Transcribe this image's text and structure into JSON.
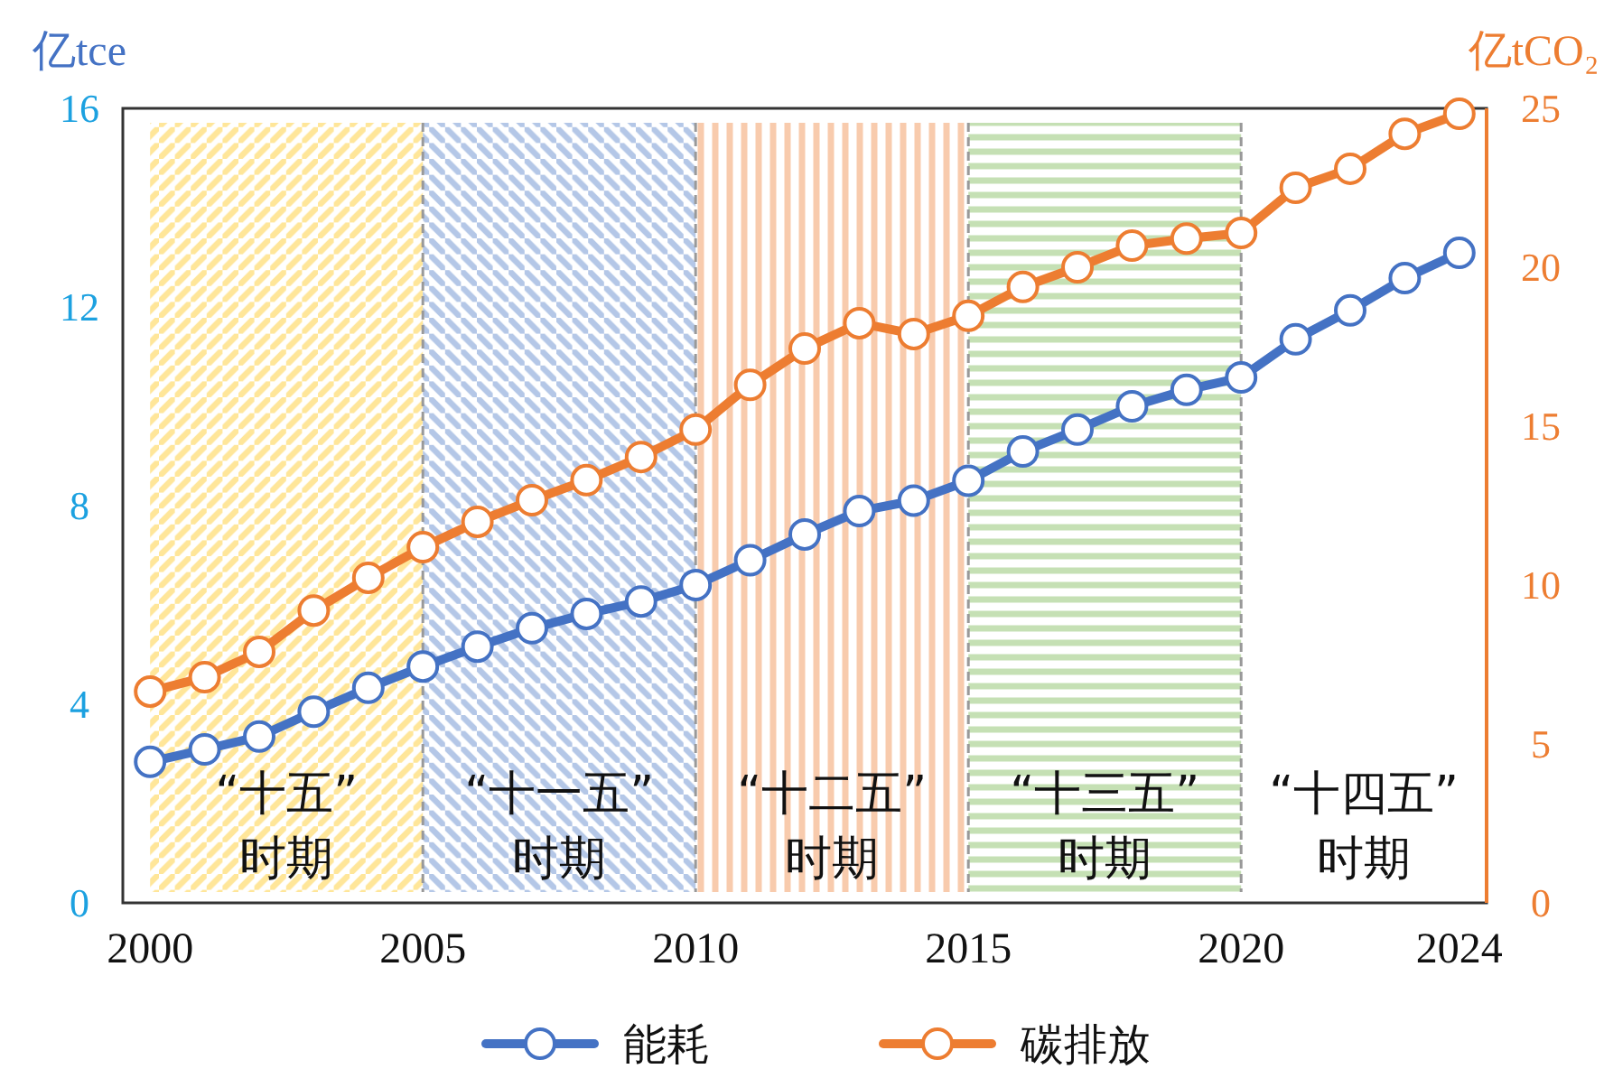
{
  "chart_data": {
    "type": "line",
    "ylabel": "亿tce",
    "y2label": "亿tCO₂",
    "x": [
      2000,
      2001,
      2002,
      2003,
      2004,
      2005,
      2006,
      2007,
      2008,
      2009,
      2010,
      2011,
      2012,
      2013,
      2014,
      2015,
      2016,
      2017,
      2018,
      2019,
      2020,
      2021,
      2022,
      2023,
      2024
    ],
    "xlim": [
      1999.5,
      2024.5
    ],
    "xticks": [
      2000,
      2005,
      2010,
      2015,
      2020,
      2024
    ],
    "ylim": [
      0,
      16
    ],
    "yticks": [
      0,
      4,
      8,
      12,
      16
    ],
    "y2lim": [
      0,
      25
    ],
    "y2ticks": [
      0,
      5,
      10,
      15,
      20,
      25
    ],
    "series": [
      {
        "name": "能耗",
        "color": "#4472c4",
        "values": [
          2.84,
          3.09,
          3.35,
          3.85,
          4.33,
          4.76,
          5.16,
          5.53,
          5.82,
          6.07,
          6.4,
          6.9,
          7.42,
          7.89,
          8.1,
          8.5,
          9.09,
          9.53,
          10.0,
          10.33,
          10.58,
          11.35,
          11.93,
          12.58,
          13.09
        ]
      },
      {
        "name": "碳排放",
        "color": "#ed7d31",
        "axis": "y2",
        "values": [
          6.65,
          7.1,
          7.9,
          9.2,
          10.23,
          11.19,
          11.99,
          12.67,
          13.3,
          14.03,
          14.89,
          16.3,
          17.44,
          18.24,
          17.9,
          18.47,
          19.38,
          20.0,
          20.68,
          20.9,
          21.08,
          22.5,
          23.1,
          24.2,
          24.83
        ]
      }
    ],
    "bands": [
      {
        "axis": "x",
        "from": 2000,
        "to": 2005,
        "label": "“十五”\n时期",
        "color": "#ffe699"
      },
      {
        "axis": "x",
        "from": 2005,
        "to": 2010,
        "label": "“十一五”\n时期",
        "color": "#b4c7e7"
      },
      {
        "axis": "x",
        "from": 2010,
        "to": 2015,
        "label": "“十二五”\n时期",
        "color": "#f8cbad"
      },
      {
        "axis": "x",
        "from": 2015,
        "to": 2020,
        "label": "“十三五”\n时期",
        "color": "#c5e0b4"
      }
    ],
    "annotations": [
      "“十四五”\n时期"
    ],
    "ref_lines": [
      {
        "axis": "x",
        "value": 2005,
        "color": "#999999",
        "line_style": "dashed"
      },
      {
        "axis": "x",
        "value": 2010,
        "color": "#999999",
        "line_style": "dashed"
      },
      {
        "axis": "x",
        "value": 2015,
        "color": "#999999",
        "line_style": "dashed"
      },
      {
        "axis": "x",
        "value": 2020,
        "color": "#999999",
        "line_style": "dashed"
      }
    ],
    "marker": "circle",
    "line_style": "solid",
    "legend": "bottom"
  }
}
